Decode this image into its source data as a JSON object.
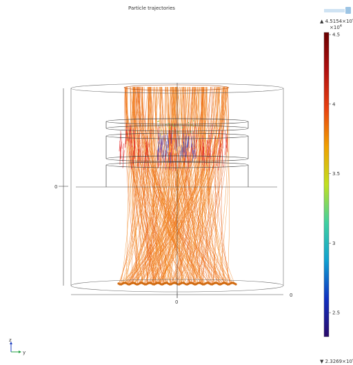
{
  "title": "Particle trajectories",
  "colorbar": {
    "max_label": "▲ 4.5154×10",
    "max_exp": "4",
    "min_label": "▼ 2.3269×10",
    "min_exp": "4",
    "multiplier": "×10",
    "multiplier_exp": "4",
    "ticks": [
      "4.5",
      "4",
      "3.5",
      "3",
      "2.5"
    ],
    "tick_values": [
      4.5,
      4.0,
      3.5,
      3.0,
      2.5
    ],
    "range": [
      2.3269,
      4.5154
    ],
    "colormap": [
      "#2a0a6a",
      "#1030c0",
      "#10a0d0",
      "#40d0a0",
      "#c0e020",
      "#f0a000",
      "#e84010",
      "#b01010",
      "#6a0000"
    ]
  },
  "axes": {
    "z_zero_label": "0",
    "y_zero_label": "0",
    "x_zero_label": "0"
  },
  "triad": {
    "z": "z",
    "y": "y"
  },
  "colors": {
    "trajectory_orange": "#f07a10",
    "trajectory_red": "#e02020",
    "trajectory_blue": "#4050c0",
    "geometry_line": "#555555"
  }
}
